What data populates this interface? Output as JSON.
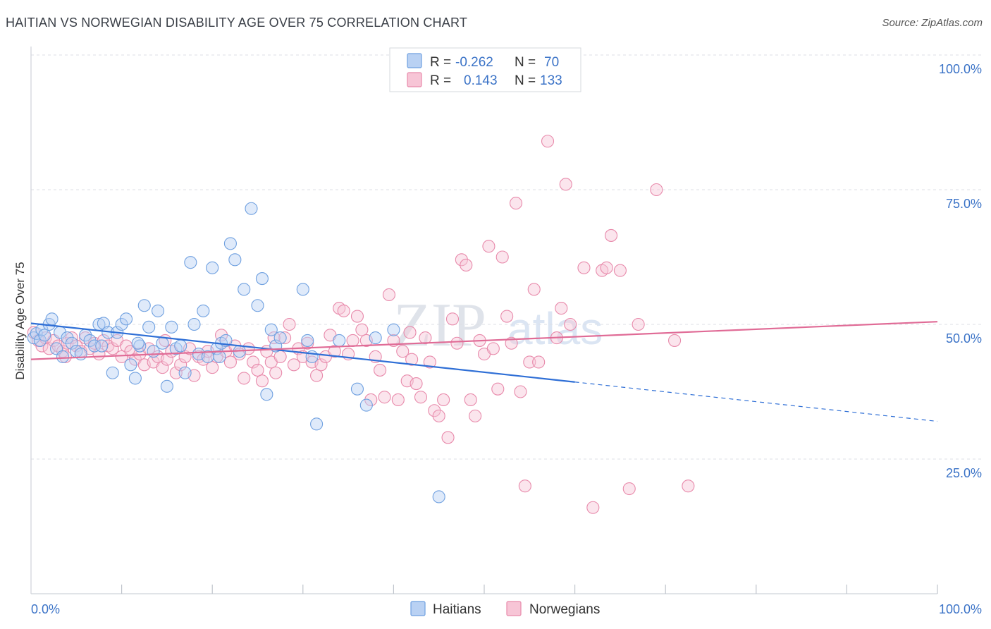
{
  "header": {
    "title": "HAITIAN VS NORWEGIAN DISABILITY AGE OVER 75 CORRELATION CHART",
    "source": "Source: ZipAtlas.com"
  },
  "watermark": {
    "zip": "ZIP",
    "atlas": "atlas"
  },
  "legend_top": [
    {
      "r_label": "R =",
      "r_value": "-0.262",
      "n_label": "N =",
      "n_value": "70",
      "color": "#6fa0e0",
      "fill": "#b9d1f3"
    },
    {
      "r_label": "R =",
      "r_value": "0.143",
      "n_label": "N =",
      "n_value": "133",
      "color": "#e88aab",
      "fill": "#f7c5d6"
    }
  ],
  "legend_bottom": [
    {
      "label": "Haitians",
      "color": "#6fa0e0",
      "fill": "#b9d1f3"
    },
    {
      "label": "Norwegians",
      "color": "#e88aab",
      "fill": "#f7c5d6"
    }
  ],
  "chart_data": {
    "type": "scatter",
    "xlabel": "",
    "ylabel": "Disability Age Over 75",
    "xlim": [
      0,
      100
    ],
    "ylim": [
      0,
      100
    ],
    "x_tick_labels": [
      "0.0%",
      "100.0%"
    ],
    "y_ticks": [
      25,
      50,
      75,
      100
    ],
    "y_tick_labels": [
      "25.0%",
      "50.0%",
      "75.0%",
      "100.0%"
    ],
    "grid": true,
    "series": [
      {
        "name": "Haitians",
        "color": "#6fa0e0",
        "fill": "#b9d1f3",
        "trend": {
          "x0": 0,
          "y0": 50.2,
          "x1": 60,
          "y1": 39.3,
          "dash_to_x": 100,
          "dash_to_y": 32.0
        },
        "points": [
          [
            0.3,
            47.5
          ],
          [
            0.6,
            48.3
          ],
          [
            1.0,
            47.0
          ],
          [
            1.2,
            49.0
          ],
          [
            1.5,
            48.0
          ],
          [
            2.0,
            50.0
          ],
          [
            2.3,
            51.0
          ],
          [
            2.8,
            45.5
          ],
          [
            3.2,
            48.5
          ],
          [
            3.5,
            44.0
          ],
          [
            4.0,
            47.5
          ],
          [
            4.5,
            46.5
          ],
          [
            5.0,
            45.0
          ],
          [
            5.5,
            44.5
          ],
          [
            6.0,
            48.0
          ],
          [
            6.5,
            47.0
          ],
          [
            7.0,
            46.0
          ],
          [
            7.5,
            50.0
          ],
          [
            8.0,
            50.2
          ],
          [
            8.5,
            48.5
          ],
          [
            9.0,
            41.0
          ],
          [
            9.5,
            48.5
          ],
          [
            10.0,
            50.0
          ],
          [
            10.5,
            51.0
          ],
          [
            11.0,
            42.5
          ],
          [
            11.5,
            40.0
          ],
          [
            12.0,
            46.0
          ],
          [
            12.5,
            53.5
          ],
          [
            13.0,
            49.5
          ],
          [
            13.5,
            45.0
          ],
          [
            14.0,
            52.5
          ],
          [
            14.5,
            46.5
          ],
          [
            15.0,
            38.5
          ],
          [
            15.5,
            49.5
          ],
          [
            16.0,
            45.5
          ],
          [
            16.5,
            46.0
          ],
          [
            17.0,
            41.0
          ],
          [
            17.6,
            61.5
          ],
          [
            18.0,
            50.0
          ],
          [
            18.5,
            44.5
          ],
          [
            19.0,
            52.5
          ],
          [
            19.5,
            44.0
          ],
          [
            20.0,
            60.5
          ],
          [
            20.5,
            45.5
          ],
          [
            21.0,
            46.5
          ],
          [
            21.5,
            47.0
          ],
          [
            22.0,
            65.0
          ],
          [
            22.5,
            62.0
          ],
          [
            23.0,
            45.0
          ],
          [
            23.5,
            56.5
          ],
          [
            24.3,
            71.5
          ],
          [
            25.0,
            53.5
          ],
          [
            25.5,
            58.5
          ],
          [
            26.0,
            37.0
          ],
          [
            26.5,
            49.0
          ],
          [
            27.0,
            46.0
          ],
          [
            30.0,
            56.5
          ],
          [
            30.5,
            47.0
          ],
          [
            31.0,
            44.0
          ],
          [
            31.5,
            31.5
          ],
          [
            34.0,
            47.0
          ],
          [
            36.0,
            38.0
          ],
          [
            37.0,
            35.0
          ],
          [
            38.0,
            47.5
          ],
          [
            40.0,
            49.0
          ],
          [
            45.0,
            18.0
          ],
          [
            7.8,
            46.0
          ],
          [
            11.8,
            46.5
          ],
          [
            20.8,
            44.0
          ],
          [
            27.5,
            47.5
          ]
        ]
      },
      {
        "name": "Norwegians",
        "color": "#e88aab",
        "fill": "#f7c5d6",
        "trend": {
          "x0": 0,
          "y0": 43.5,
          "x1": 100,
          "y1": 50.5
        },
        "points": [
          [
            0.3,
            48.5
          ],
          [
            0.8,
            47.0
          ],
          [
            1.2,
            46.0
          ],
          [
            1.6,
            47.5
          ],
          [
            2.0,
            45.5
          ],
          [
            2.5,
            47.0
          ],
          [
            3.0,
            46.0
          ],
          [
            3.5,
            45.0
          ],
          [
            4.0,
            46.5
          ],
          [
            4.5,
            47.5
          ],
          [
            5.0,
            46.0
          ],
          [
            5.5,
            45.0
          ],
          [
            6.0,
            47.5
          ],
          [
            6.5,
            45.5
          ],
          [
            7.0,
            46.5
          ],
          [
            7.5,
            44.5
          ],
          [
            8.0,
            47.0
          ],
          [
            8.5,
            46.0
          ],
          [
            9.0,
            45.5
          ],
          [
            9.5,
            47.0
          ],
          [
            10.0,
            44.0
          ],
          [
            10.5,
            46.0
          ],
          [
            11.0,
            45.0
          ],
          [
            11.5,
            43.5
          ],
          [
            12.0,
            44.5
          ],
          [
            12.5,
            42.5
          ],
          [
            13.0,
            45.5
          ],
          [
            13.5,
            43.0
          ],
          [
            14.0,
            44.0
          ],
          [
            14.5,
            42.0
          ],
          [
            15.0,
            43.5
          ],
          [
            15.5,
            45.0
          ],
          [
            16.0,
            41.0
          ],
          [
            16.5,
            42.5
          ],
          [
            17.0,
            44.0
          ],
          [
            17.5,
            45.5
          ],
          [
            18.0,
            40.5
          ],
          [
            18.5,
            44.0
          ],
          [
            19.0,
            43.5
          ],
          [
            19.5,
            45.0
          ],
          [
            20.0,
            42.0
          ],
          [
            20.5,
            44.0
          ],
          [
            21.0,
            48.0
          ],
          [
            21.5,
            45.0
          ],
          [
            22.0,
            43.0
          ],
          [
            22.5,
            46.0
          ],
          [
            23.0,
            44.5
          ],
          [
            23.5,
            40.0
          ],
          [
            24.0,
            45.5
          ],
          [
            24.5,
            43.0
          ],
          [
            25.0,
            41.5
          ],
          [
            25.5,
            39.5
          ],
          [
            26.0,
            45.0
          ],
          [
            26.5,
            43.0
          ],
          [
            27.0,
            41.0
          ],
          [
            27.5,
            44.0
          ],
          [
            28.0,
            47.5
          ],
          [
            28.5,
            50.0
          ],
          [
            29.0,
            42.5
          ],
          [
            29.5,
            45.5
          ],
          [
            30.0,
            44.0
          ],
          [
            30.5,
            46.5
          ],
          [
            31.0,
            43.0
          ],
          [
            31.5,
            40.5
          ],
          [
            32.0,
            42.5
          ],
          [
            32.5,
            44.0
          ],
          [
            33.0,
            48.0
          ],
          [
            33.5,
            45.0
          ],
          [
            34.0,
            53.0
          ],
          [
            34.5,
            52.5
          ],
          [
            35.0,
            44.5
          ],
          [
            35.5,
            47.0
          ],
          [
            36.0,
            51.5
          ],
          [
            36.5,
            49.0
          ],
          [
            37.0,
            47.0
          ],
          [
            37.5,
            36.0
          ],
          [
            38.0,
            44.0
          ],
          [
            38.5,
            41.5
          ],
          [
            39.0,
            36.5
          ],
          [
            39.5,
            55.5
          ],
          [
            40.0,
            47.0
          ],
          [
            40.5,
            36.0
          ],
          [
            41.0,
            45.0
          ],
          [
            41.5,
            39.5
          ],
          [
            42.0,
            43.5
          ],
          [
            42.5,
            39.0
          ],
          [
            43.0,
            36.5
          ],
          [
            43.5,
            47.5
          ],
          [
            44.0,
            43.0
          ],
          [
            44.5,
            34.0
          ],
          [
            45.0,
            33.0
          ],
          [
            45.5,
            36.0
          ],
          [
            46.0,
            29.0
          ],
          [
            46.5,
            51.0
          ],
          [
            47.0,
            46.5
          ],
          [
            47.5,
            62.0
          ],
          [
            48.0,
            61.0
          ],
          [
            48.5,
            36.0
          ],
          [
            49.0,
            33.0
          ],
          [
            49.5,
            47.0
          ],
          [
            50.0,
            44.5
          ],
          [
            50.5,
            64.5
          ],
          [
            51.0,
            45.5
          ],
          [
            51.5,
            38.0
          ],
          [
            52.0,
            62.5
          ],
          [
            52.5,
            51.5
          ],
          [
            53.0,
            46.5
          ],
          [
            53.5,
            72.5
          ],
          [
            54.0,
            37.5
          ],
          [
            54.5,
            20.0
          ],
          [
            55.0,
            43.0
          ],
          [
            55.5,
            56.5
          ],
          [
            56.0,
            43.0
          ],
          [
            57.0,
            84.0
          ],
          [
            58.0,
            47.5
          ],
          [
            58.5,
            53.0
          ],
          [
            59.0,
            76.0
          ],
          [
            59.5,
            50.0
          ],
          [
            61.0,
            60.5
          ],
          [
            62.0,
            16.0
          ],
          [
            63.0,
            60.0
          ],
          [
            63.5,
            60.5
          ],
          [
            64.0,
            66.5
          ],
          [
            65.0,
            60.0
          ],
          [
            66.0,
            19.5
          ],
          [
            67.0,
            50.0
          ],
          [
            69.0,
            75.0
          ],
          [
            71.0,
            47.0
          ],
          [
            72.5,
            20.0
          ],
          [
            3.8,
            44.0
          ],
          [
            14.8,
            47.0
          ],
          [
            26.8,
            47.5
          ],
          [
            41.8,
            48.5
          ]
        ]
      }
    ]
  }
}
